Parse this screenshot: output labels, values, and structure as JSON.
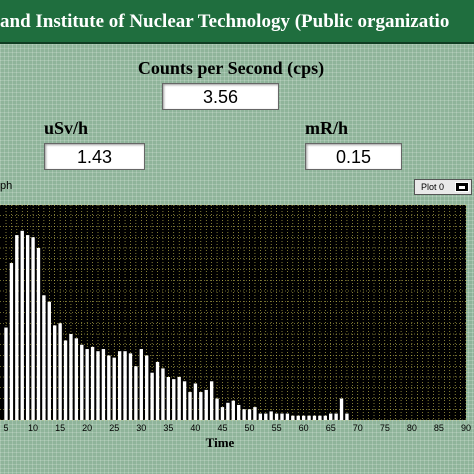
{
  "window": {
    "title": "and Institute of Nuclear Technology (Public organizatio"
  },
  "readouts": {
    "cps": {
      "label": "Counts per Second (cps)",
      "value": "3.56"
    },
    "usv": {
      "label": "uSv/h",
      "value": "1.43"
    },
    "mr": {
      "label": "mR/h",
      "value": "0.15"
    }
  },
  "graph": {
    "label_fragment": "ph",
    "legend_label": "Plot 0"
  },
  "colors": {
    "plot_background": "#000000",
    "bar": "#ffffff",
    "grid": "#d9cf5a",
    "title_bar": "#1f6e3e"
  },
  "chart_data": {
    "type": "bar",
    "title": "",
    "xlabel": "Time",
    "ylabel": "",
    "xlim": [
      5,
      90
    ],
    "ylim": [
      0,
      100
    ],
    "x_ticks": [
      5,
      10,
      15,
      20,
      25,
      30,
      35,
      40,
      45,
      50,
      55,
      60,
      65,
      70,
      75,
      80,
      85,
      90
    ],
    "x": [
      5,
      6,
      7,
      8,
      9,
      10,
      11,
      12,
      13,
      14,
      15,
      16,
      17,
      18,
      19,
      20,
      21,
      22,
      23,
      24,
      25,
      26,
      27,
      28,
      29,
      30,
      31,
      32,
      33,
      34,
      35,
      36,
      37,
      38,
      39,
      40,
      41,
      42,
      43,
      44,
      45,
      46,
      47,
      48,
      49,
      50,
      51,
      52,
      53,
      54,
      55,
      56,
      57,
      58,
      59,
      60,
      61,
      62,
      63,
      64,
      65,
      66,
      67,
      68
    ],
    "values": [
      43,
      73,
      86,
      88,
      86,
      85,
      80,
      58,
      55,
      44,
      45,
      37,
      40,
      38,
      35,
      33,
      34,
      32,
      33,
      30,
      29,
      32,
      32,
      31,
      25,
      33,
      30,
      22,
      27,
      24,
      20,
      19,
      20,
      18,
      13,
      17,
      13,
      14,
      18,
      10,
      6,
      8,
      9,
      7,
      5,
      5,
      6,
      3,
      3,
      4,
      3,
      3,
      3,
      2,
      2,
      2,
      2,
      2,
      2,
      2,
      3,
      3,
      10,
      3
    ]
  }
}
